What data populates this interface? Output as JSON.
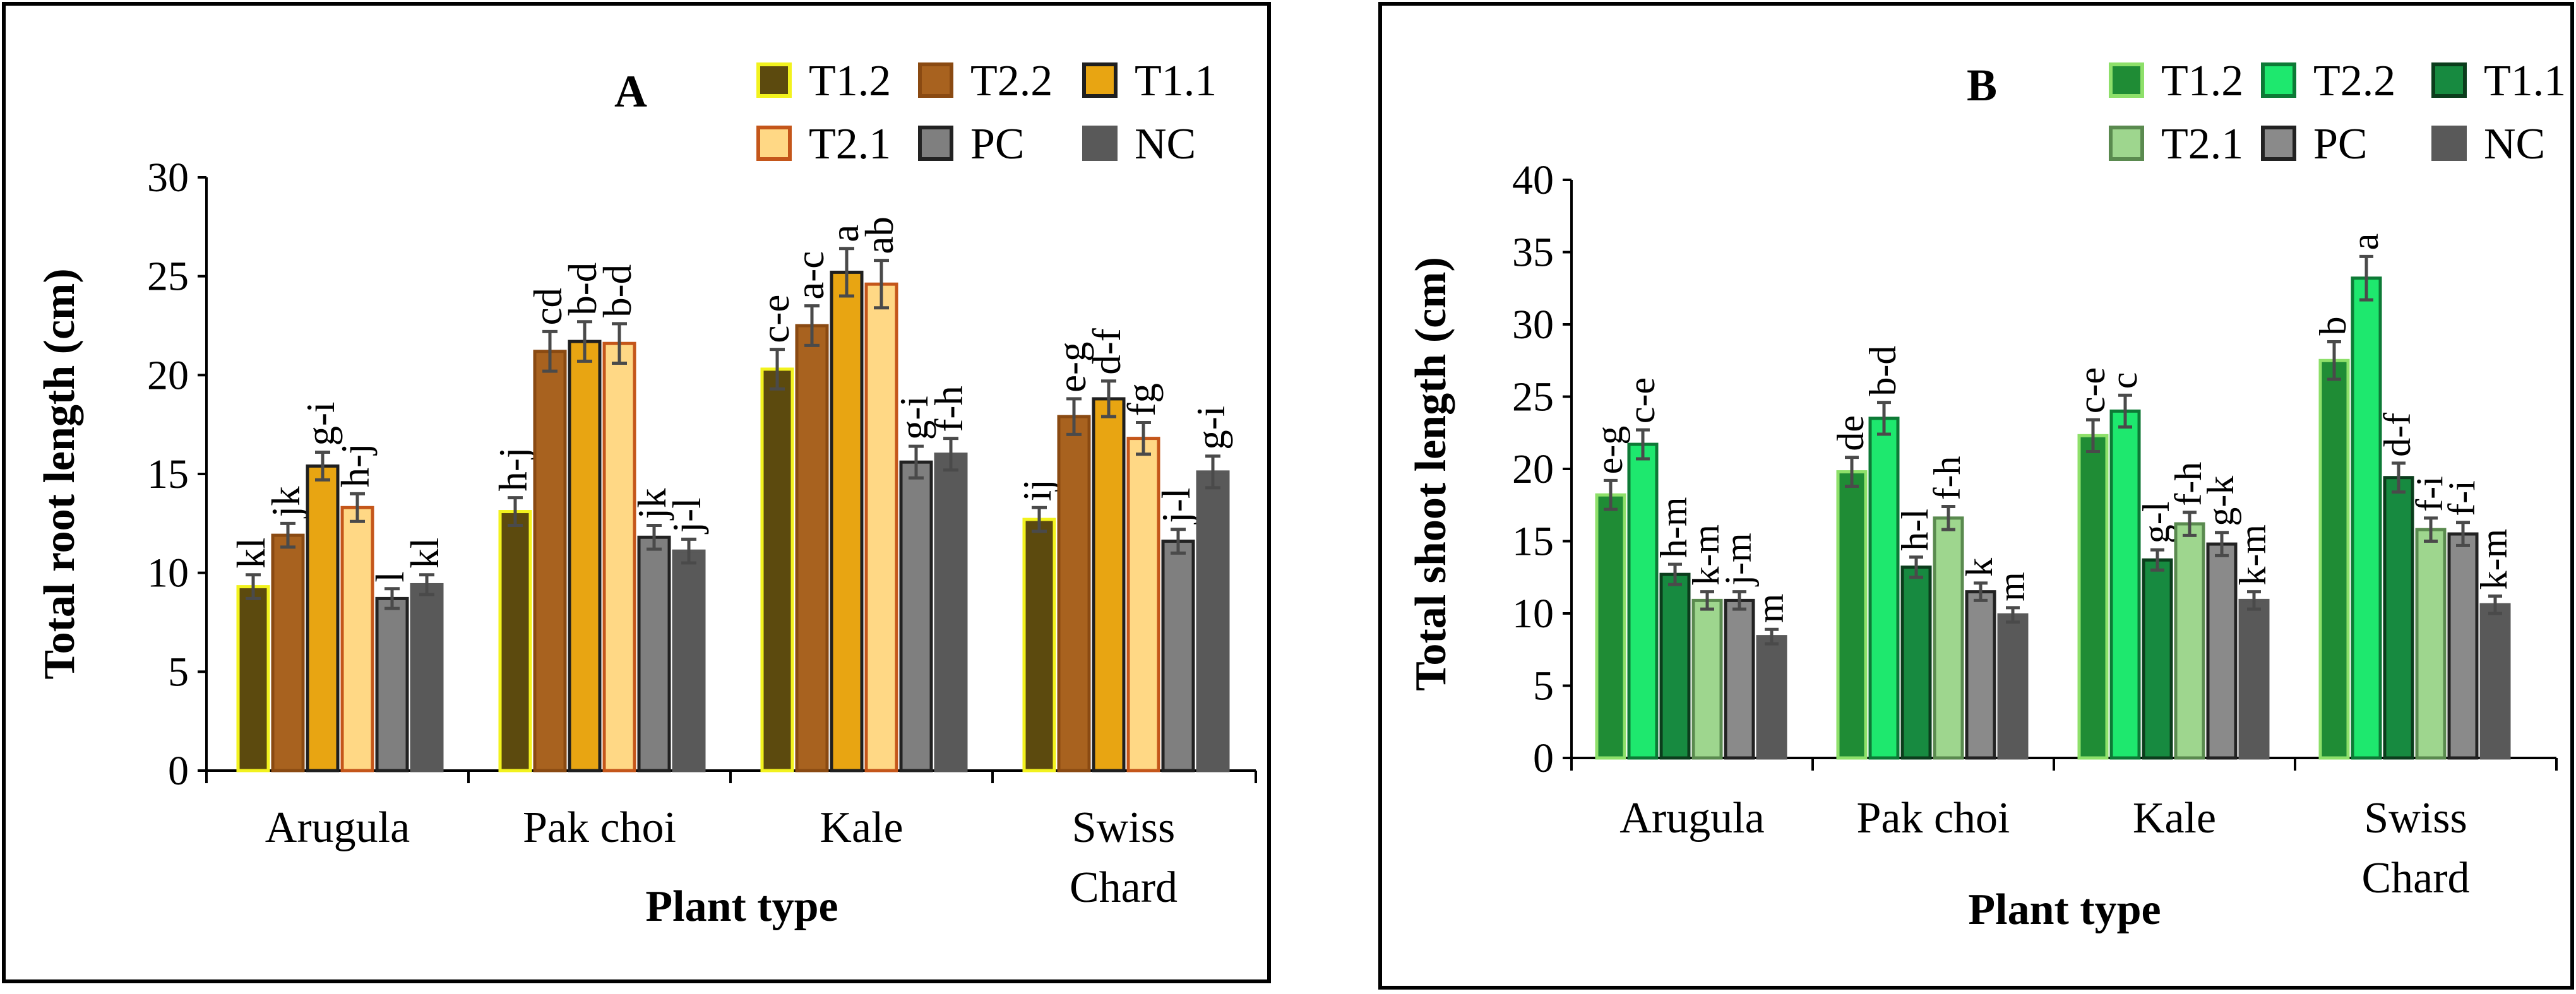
{
  "chart_data": [
    {
      "type": "bar",
      "panel_label": "A",
      "title": "",
      "xlabel": "Plant type",
      "ylabel": "Total root length (cm)",
      "ylim": [
        0,
        30
      ],
      "yticks": [
        0,
        5,
        10,
        15,
        20,
        25,
        30
      ],
      "grid": false,
      "legend_position": "top-right",
      "categories": [
        "Arugula",
        "Pak choi",
        "Kale",
        "Swiss Chard"
      ],
      "category_lines": [
        [
          "Arugula"
        ],
        [
          "Pak choi"
        ],
        [
          "Kale"
        ],
        [
          "Swiss",
          "Chard"
        ]
      ],
      "series": [
        {
          "name": "T1.2",
          "fill": "#5c4a0e",
          "stroke": "#f2f21e",
          "values": [
            9.3,
            13.1,
            20.3,
            12.7
          ],
          "errors": [
            0.6,
            0.7,
            1.0,
            0.6
          ],
          "labels": [
            "kl",
            "h-j",
            "c-e",
            "ij"
          ]
        },
        {
          "name": "T2.2",
          "fill": "#a8621f",
          "stroke": "#8a4a12",
          "values": [
            11.9,
            21.2,
            22.5,
            17.9
          ],
          "errors": [
            0.6,
            1.0,
            1.0,
            0.9
          ],
          "labels": [
            "jk",
            "cd",
            "a-c",
            "e-g"
          ]
        },
        {
          "name": "T1.1",
          "fill": "#e8a512",
          "stroke": "#1f1f1f",
          "values": [
            15.4,
            21.7,
            25.2,
            18.8
          ],
          "errors": [
            0.7,
            1.0,
            1.2,
            0.9
          ],
          "labels": [
            "g-i",
            "b-d",
            "a",
            "d-f"
          ]
        },
        {
          "name": "T2.1",
          "fill": "#ffd885",
          "stroke": "#c4561a",
          "values": [
            13.3,
            21.6,
            24.6,
            16.8
          ],
          "errors": [
            0.7,
            1.0,
            1.2,
            0.8
          ],
          "labels": [
            "h-j",
            "b-d",
            "ab",
            "fg"
          ]
        },
        {
          "name": "PC",
          "fill": "#7f7f7f",
          "stroke": "#222222",
          "values": [
            8.7,
            11.8,
            15.6,
            11.6
          ],
          "errors": [
            0.5,
            0.6,
            0.8,
            0.6
          ],
          "labels": [
            "l",
            "jk",
            "g-i",
            "j-l"
          ]
        },
        {
          "name": "NC",
          "fill": "#595959",
          "stroke": "#595959",
          "values": [
            9.4,
            11.1,
            16.0,
            15.1
          ],
          "errors": [
            0.5,
            0.6,
            0.8,
            0.8
          ],
          "labels": [
            "kl",
            "j-l",
            "f-h",
            "g-i"
          ]
        }
      ]
    },
    {
      "type": "bar",
      "panel_label": "B",
      "title": "",
      "xlabel": "Plant type",
      "ylabel": "Total shoot length (cm)",
      "ylim": [
        0,
        40
      ],
      "yticks": [
        0,
        5,
        10,
        15,
        20,
        25,
        30,
        35,
        40
      ],
      "grid": false,
      "legend_position": "top-right",
      "categories": [
        "Arugula",
        "Pak choi",
        "Kale",
        "Swiss Chard"
      ],
      "category_lines": [
        [
          "Arugula"
        ],
        [
          "Pak choi"
        ],
        [
          "Kale"
        ],
        [
          "Swiss",
          "Chard"
        ]
      ],
      "series": [
        {
          "name": "T1.2",
          "fill": "#1f8c35",
          "stroke": "#8ee06a",
          "values": [
            18.2,
            19.8,
            22.3,
            27.5
          ],
          "errors": [
            1.0,
            1.0,
            1.1,
            1.3
          ],
          "labels": [
            "e-g",
            "de",
            "c-e",
            "b"
          ]
        },
        {
          "name": "T2.2",
          "fill": "#1ee86e",
          "stroke": "#0d7a36",
          "values": [
            21.7,
            23.5,
            24.0,
            33.2
          ],
          "errors": [
            1.0,
            1.1,
            1.1,
            1.5
          ],
          "labels": [
            "c-e",
            "b-d",
            "c",
            "a"
          ]
        },
        {
          "name": "T1.1",
          "fill": "#178a40",
          "stroke": "#0b3d1c",
          "values": [
            12.7,
            13.2,
            13.7,
            19.4
          ],
          "errors": [
            0.7,
            0.7,
            0.7,
            1.0
          ],
          "labels": [
            "h-m",
            "h-l",
            "g-l",
            "d-f"
          ]
        },
        {
          "name": "T2.1",
          "fill": "#9ed68e",
          "stroke": "#5a8a4f",
          "values": [
            10.9,
            16.6,
            16.2,
            15.8
          ],
          "errors": [
            0.6,
            0.8,
            0.8,
            0.8
          ],
          "labels": [
            "k-m",
            "f-h",
            "f-h",
            "f-i"
          ]
        },
        {
          "name": "PC",
          "fill": "#8a8a8a",
          "stroke": "#222222",
          "values": [
            10.9,
            11.5,
            14.8,
            15.5
          ],
          "errors": [
            0.6,
            0.6,
            0.8,
            0.8
          ],
          "labels": [
            "j-m",
            "k",
            "g-k",
            "f-i"
          ]
        },
        {
          "name": "NC",
          "fill": "#595959",
          "stroke": "#595959",
          "values": [
            8.4,
            9.9,
            10.9,
            10.6
          ],
          "errors": [
            0.5,
            0.5,
            0.6,
            0.6
          ],
          "labels": [
            "m",
            "m",
            "k-m",
            "k-m"
          ]
        }
      ]
    }
  ]
}
